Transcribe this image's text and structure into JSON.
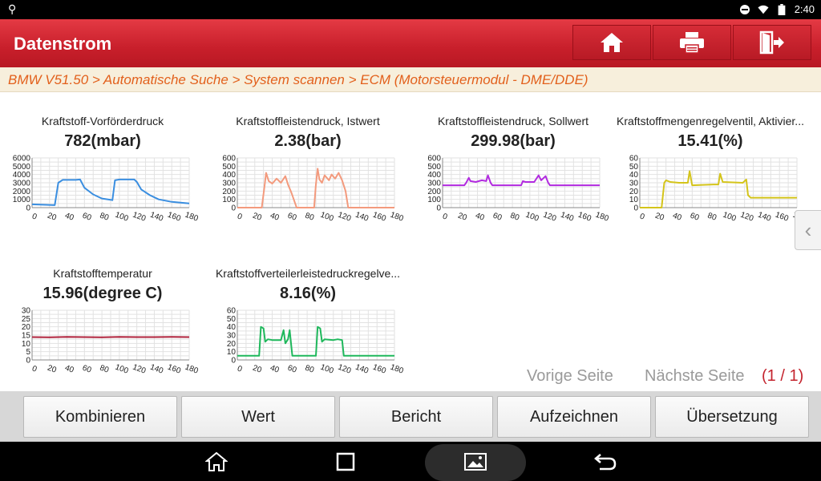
{
  "status": {
    "time": "2:40"
  },
  "header": {
    "title": "Datenstrom",
    "buttons": [
      {
        "name": "home-button",
        "icon": "home-icon"
      },
      {
        "name": "print-button",
        "icon": "printer-icon"
      },
      {
        "name": "exit-button",
        "icon": "exit-icon"
      }
    ]
  },
  "breadcrumb": "BMW V51.50 > Automatische Suche > System scannen > ECM (Motorsteuermodul - DME/DDE)",
  "colors": {
    "accent": "#c81f2b",
    "breadcrumb_text": "#e2601c",
    "pagecount": "#c4242e"
  },
  "chart_data": [
    {
      "type": "line",
      "title": "Kraftstoff-Vorförderdruck",
      "value_label": "782(mbar)",
      "color": "#3a8ee0",
      "xlim": [
        0,
        180
      ],
      "ylim": [
        0,
        6000
      ],
      "xticks": [
        "0",
        "20",
        "40",
        "60",
        "80",
        "100",
        "120",
        "140",
        "160",
        "180"
      ],
      "yticks": [
        "6000",
        "5000",
        "4000",
        "3000",
        "2000",
        "1000",
        "0"
      ],
      "x": [
        0,
        26,
        30,
        35,
        50,
        55,
        60,
        70,
        80,
        90,
        92,
        95,
        100,
        117,
        120,
        125,
        135,
        145,
        160,
        180
      ],
      "y": [
        400,
        300,
        3000,
        3350,
        3350,
        3400,
        2400,
        1600,
        1100,
        950,
        900,
        3300,
        3400,
        3400,
        3100,
        2200,
        1500,
        1000,
        700,
        500
      ]
    },
    {
      "type": "line",
      "title": "Kraftstoffleistendruck, Istwert",
      "value_label": "2.38(bar)",
      "color": "#f39a7d",
      "xlim": [
        0,
        180
      ],
      "ylim": [
        0,
        600
      ],
      "xticks": [
        "0",
        "20",
        "40",
        "60",
        "80",
        "100",
        "120",
        "140",
        "160",
        "180"
      ],
      "yticks": [
        "600",
        "500",
        "400",
        "300",
        "200",
        "100",
        "0"
      ],
      "x": [
        0,
        28,
        31,
        33,
        36,
        40,
        45,
        50,
        55,
        58,
        62,
        68,
        75,
        88,
        90,
        92,
        94,
        97,
        100,
        105,
        108,
        112,
        116,
        120,
        124,
        127,
        130,
        140,
        180
      ],
      "y": [
        0,
        0,
        250,
        420,
        320,
        290,
        350,
        300,
        380,
        280,
        180,
        0,
        0,
        0,
        280,
        470,
        340,
        300,
        390,
        330,
        400,
        350,
        420,
        330,
        200,
        0,
        0,
        0,
        0
      ]
    },
    {
      "type": "line",
      "title": "Kraftstoffleistendruck, Sollwert",
      "value_label": "299.98(bar)",
      "color": "#b22be0",
      "xlim": [
        0,
        180
      ],
      "ylim": [
        0,
        600
      ],
      "xticks": [
        "0",
        "20",
        "40",
        "60",
        "80",
        "100",
        "120",
        "140",
        "160",
        "180"
      ],
      "yticks": [
        "600",
        "500",
        "400",
        "300",
        "200",
        "100",
        "0"
      ],
      "x": [
        0,
        25,
        27,
        30,
        32,
        38,
        45,
        50,
        52,
        55,
        57,
        60,
        90,
        92,
        95,
        105,
        110,
        113,
        118,
        121,
        123,
        140,
        180
      ],
      "y": [
        270,
        270,
        300,
        360,
        320,
        310,
        330,
        320,
        390,
        300,
        270,
        270,
        270,
        320,
        310,
        310,
        390,
        330,
        380,
        300,
        270,
        270,
        270
      ]
    },
    {
      "type": "line",
      "title": "Kraftstoffmengenregelventil, Aktivier...",
      "value_label": "15.41(%)",
      "color": "#d4c41a",
      "xlim": [
        0,
        180
      ],
      "ylim": [
        0,
        60
      ],
      "xticks": [
        "0",
        "20",
        "40",
        "60",
        "80",
        "100",
        "120",
        "140",
        "160",
        "180"
      ],
      "yticks": [
        "60",
        "50",
        "40",
        "30",
        "20",
        "10",
        "0"
      ],
      "x": [
        0,
        25,
        28,
        30,
        35,
        45,
        55,
        57,
        60,
        85,
        90,
        92,
        95,
        118,
        122,
        124,
        127,
        140,
        180
      ],
      "y": [
        0,
        0,
        30,
        33,
        31,
        30,
        30,
        44,
        27,
        28,
        28,
        41,
        31,
        30,
        34,
        15,
        12,
        12,
        12
      ]
    },
    {
      "type": "line",
      "title": "Kraftstofftemperatur",
      "value_label": "15.96(degree C)",
      "color": "#b0243d",
      "xlim": [
        0,
        180
      ],
      "ylim": [
        0,
        30
      ],
      "xticks": [
        "0",
        "20",
        "40",
        "60",
        "80",
        "100",
        "120",
        "140",
        "160",
        "180"
      ],
      "yticks": [
        "30",
        "25",
        "20",
        "15",
        "10",
        "5",
        "0"
      ],
      "x": [
        0,
        20,
        40,
        60,
        80,
        100,
        120,
        140,
        160,
        180
      ],
      "y": [
        13.8,
        13.7,
        13.9,
        13.8,
        13.7,
        13.9,
        13.8,
        13.8,
        13.9,
        13.8
      ]
    },
    {
      "type": "line",
      "title": "Kraftstoffverteilerleistedruckregelve...",
      "value_label": "8.16(%)",
      "color": "#1fb85c",
      "xlim": [
        0,
        180
      ],
      "ylim": [
        0,
        60
      ],
      "xticks": [
        "0",
        "20",
        "40",
        "60",
        "80",
        "100",
        "120",
        "140",
        "160",
        "180"
      ],
      "yticks": [
        "60",
        "50",
        "40",
        "30",
        "20",
        "10",
        "0"
      ],
      "x": [
        0,
        25,
        27,
        30,
        32,
        35,
        40,
        50,
        53,
        55,
        58,
        60,
        63,
        75,
        90,
        92,
        95,
        97,
        100,
        110,
        115,
        120,
        122,
        125,
        140,
        180
      ],
      "y": [
        5,
        5,
        40,
        38,
        22,
        25,
        24,
        24,
        36,
        20,
        25,
        36,
        5,
        5,
        5,
        40,
        38,
        22,
        25,
        24,
        25,
        24,
        5,
        5,
        5,
        5
      ]
    }
  ],
  "pager": {
    "prev": "Vorige Seite",
    "next": "Nächste Seite",
    "count": "(1 / 1)"
  },
  "toolbar": {
    "combine": "Kombinieren",
    "value": "Wert",
    "report": "Bericht",
    "record": "Aufzeichnen",
    "translate": "Übersetzung"
  }
}
